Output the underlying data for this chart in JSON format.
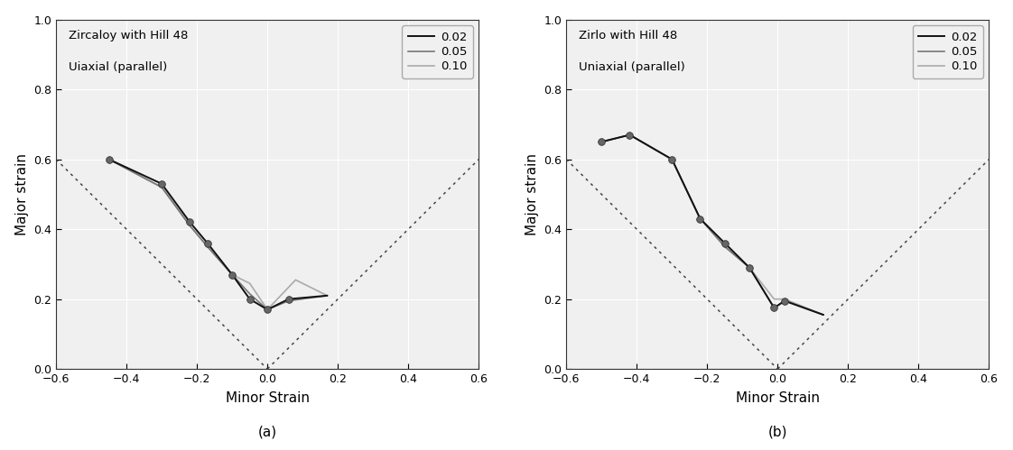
{
  "panel_a": {
    "title_line1": "Zircaloy with Hill 48",
    "title_line2": "Uiaxial (parallel)",
    "xlabel": "Minor Strain",
    "ylabel": "Major strain",
    "xlim": [
      -0.6,
      0.6
    ],
    "ylim": [
      0.0,
      1.0
    ],
    "xticks": [
      -0.6,
      -0.4,
      -0.2,
      0.0,
      0.2,
      0.4,
      0.6
    ],
    "yticks": [
      0.0,
      0.2,
      0.4,
      0.6,
      0.8,
      1.0
    ],
    "series": {
      "s002": {
        "x": [
          -0.45,
          -0.3,
          -0.22,
          -0.17,
          -0.1,
          -0.05,
          0.0,
          0.06,
          0.17
        ],
        "y": [
          0.6,
          0.53,
          0.42,
          0.36,
          0.27,
          0.2,
          0.17,
          0.2,
          0.21
        ],
        "color": "#111111",
        "lw": 1.4
      },
      "s005": {
        "x": [
          -0.45,
          -0.3,
          -0.22,
          -0.17,
          -0.1,
          -0.05,
          0.0,
          0.06,
          0.17
        ],
        "y": [
          0.6,
          0.52,
          0.41,
          0.35,
          0.27,
          0.215,
          0.17,
          0.195,
          0.21
        ],
        "color": "#777777",
        "lw": 1.2
      },
      "s010": {
        "x": [
          -0.45,
          -0.3,
          -0.22,
          -0.17,
          -0.1,
          -0.05,
          0.0,
          0.08,
          0.17
        ],
        "y": [
          0.6,
          0.52,
          0.41,
          0.35,
          0.27,
          0.245,
          0.17,
          0.255,
          0.21
        ],
        "color": "#aaaaaa",
        "lw": 1.2
      }
    },
    "markers_x": [
      -0.45,
      -0.3,
      -0.22,
      -0.17,
      -0.1,
      -0.05,
      0.0,
      0.06
    ],
    "markers_y": [
      0.6,
      0.53,
      0.42,
      0.36,
      0.27,
      0.2,
      0.17,
      0.2
    ],
    "label": "(a)"
  },
  "panel_b": {
    "title_line1": "Zirlo with Hill 48",
    "title_line2": "Uniaxial (parallel)",
    "xlabel": "Minor Strain",
    "ylabel": "Major strain",
    "xlim": [
      -0.6,
      0.6
    ],
    "ylim": [
      0.0,
      1.0
    ],
    "xticks": [
      -0.6,
      -0.4,
      -0.2,
      0.0,
      0.2,
      0.4,
      0.6
    ],
    "yticks": [
      0.0,
      0.2,
      0.4,
      0.6,
      0.8,
      1.0
    ],
    "series": {
      "s002": {
        "x": [
          -0.5,
          -0.42,
          -0.3,
          -0.22,
          -0.15,
          -0.08,
          -0.01,
          0.02,
          0.13
        ],
        "y": [
          0.65,
          0.67,
          0.6,
          0.43,
          0.36,
          0.29,
          0.175,
          0.195,
          0.155
        ],
        "color": "#111111",
        "lw": 1.4
      },
      "s005": {
        "x": [
          -0.5,
          -0.42,
          -0.3,
          -0.22,
          -0.15,
          -0.08,
          -0.01,
          0.02,
          0.13
        ],
        "y": [
          0.65,
          0.67,
          0.6,
          0.43,
          0.35,
          0.29,
          0.175,
          0.195,
          0.155
        ],
        "color": "#777777",
        "lw": 1.2
      },
      "s010": {
        "x": [
          -0.5,
          -0.42,
          -0.3,
          -0.22,
          -0.15,
          -0.08,
          -0.01,
          0.02,
          0.13
        ],
        "y": [
          0.65,
          0.67,
          0.6,
          0.43,
          0.35,
          0.29,
          0.2,
          0.2,
          0.155
        ],
        "color": "#aaaaaa",
        "lw": 1.2
      }
    },
    "markers_x": [
      -0.5,
      -0.42,
      -0.3,
      -0.22,
      -0.15,
      -0.08,
      -0.01,
      0.02
    ],
    "markers_y": [
      0.65,
      0.67,
      0.6,
      0.43,
      0.36,
      0.29,
      0.175,
      0.195
    ],
    "label": "(b)"
  },
  "legend_labels": [
    "0.02",
    "0.05",
    "0.10"
  ],
  "legend_colors": [
    "#111111",
    "#777777",
    "#aaaaaa"
  ],
  "legend_lw": [
    1.4,
    1.2,
    1.2
  ],
  "marker_color": "#666666",
  "marker_edge_color": "#333333",
  "marker_size": 5.5,
  "dotted_line_color": "#444444",
  "background_color": "#ffffff",
  "axes_bg_color": "#f0f0f0",
  "grid_color": "#ffffff",
  "grid_lw": 0.8,
  "font_size_label": 11,
  "font_size_tick": 9,
  "font_size_text": 9.5,
  "font_size_legend": 9.5,
  "font_size_caption": 11
}
